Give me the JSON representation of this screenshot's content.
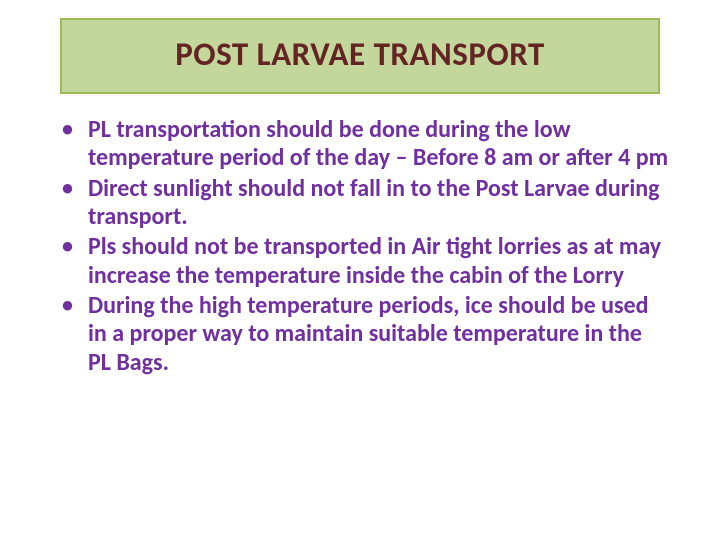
{
  "slide": {
    "title": "POST LARVAE TRANSPORT",
    "title_color": "#632423",
    "title_bg": "#c3d69b",
    "title_border": "#9bbb59",
    "bullet_color": "#7030a0",
    "background_color": "#ffffff",
    "title_fontsize": 33,
    "bullet_fontsize": 24,
    "bullets": [
      "PL transportation should be done during the low temperature period of the day – Before 8 am or after 4 pm",
      "Direct sunlight should not fall in to the Post Larvae during transport.",
      " Pls should not be transported in Air tight lorries as at may increase the temperature inside the cabin of the Lorry",
      "During the high temperature periods, ice should be used in a proper way to maintain suitable temperature in the PL Bags."
    ]
  }
}
